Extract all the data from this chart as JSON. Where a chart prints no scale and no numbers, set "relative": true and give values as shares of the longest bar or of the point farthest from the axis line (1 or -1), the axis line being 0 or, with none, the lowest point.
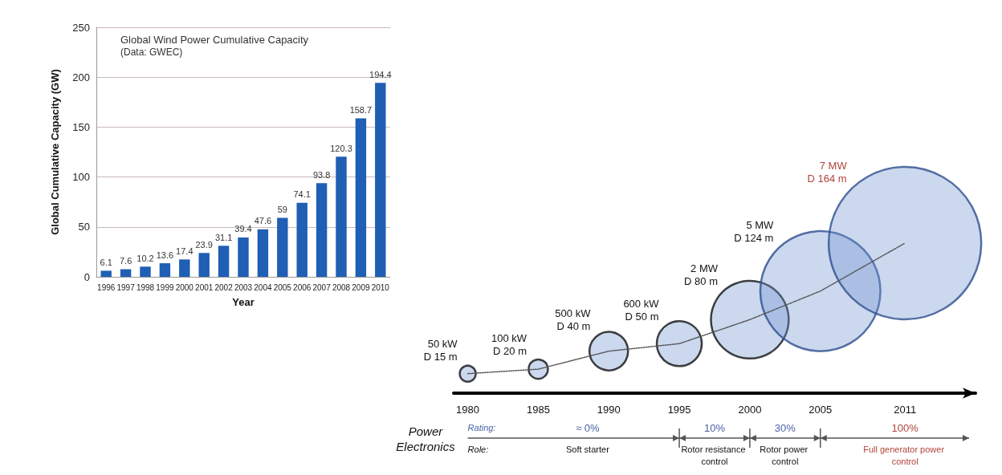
{
  "chart_data": [
    {
      "type": "bar",
      "title": "Global Wind Power Cumulative Capacity",
      "subtitle": "(Data: GWEC)",
      "xlabel": "Year",
      "ylabel": "Global Cumulative Capacity (GW)",
      "categories": [
        "1996",
        "1997",
        "1998",
        "1999",
        "2000",
        "2001",
        "2002",
        "2003",
        "2004",
        "2005",
        "2006",
        "2007",
        "2008",
        "2009",
        "2010"
      ],
      "values": [
        6.1,
        7.6,
        10.2,
        13.6,
        17.4,
        23.9,
        31.1,
        39.4,
        47.6,
        59,
        74.1,
        93.8,
        120.3,
        158.7,
        194.4
      ],
      "color": "#1f5fb4",
      "ylim": [
        0,
        250
      ],
      "yticks": [
        0,
        50,
        100,
        150,
        200,
        250
      ],
      "grid": "y",
      "data_labels": true
    },
    {
      "type": "bubble",
      "relative": true,
      "x": [
        1980,
        1985,
        1990,
        1995,
        2000,
        2005,
        2011
      ],
      "xlim": [
        1979,
        2016
      ],
      "xticks": [
        1980,
        1985,
        1990,
        1995,
        2000,
        2005,
        2011
      ],
      "tick_labels": "x",
      "series": [
        {
          "type": "bubble",
          "values": [
            0.13,
            0.16,
            0.28,
            0.33,
            0.49,
            0.68,
            1
          ],
          "sizes": [
            0.011,
            0.016,
            0.064,
            0.087,
            0.26,
            0.62,
            1
          ],
          "colors": [
            "#111111",
            "#111111",
            "#111111",
            "#111111",
            "#111111",
            "#2e4f8f",
            "#2e4f8f"
          ]
        },
        {
          "type": "line",
          "values": [
            0.13,
            0.16,
            0.28,
            0.33,
            0.49,
            0.68,
            1
          ],
          "color": "#555555",
          "line_style": "dotted"
        }
      ],
      "annotations": [
        "50 kW\nD 15 m",
        "100 kW\nD 20 m",
        "500 kW\nD 40 m",
        "600 kW\nD 50 m",
        "2 MW\nD 80 m",
        "5 MW\nD 124 m",
        "7 MW\nD 164 m",
        "Power Electronics",
        "Rating:",
        "Role:",
        "≈ 0%",
        "10%",
        "30%",
        "100%",
        "Soft starter",
        "Rotor resistance control",
        "Rotor power control",
        "Full generator power control"
      ]
    }
  ]
}
